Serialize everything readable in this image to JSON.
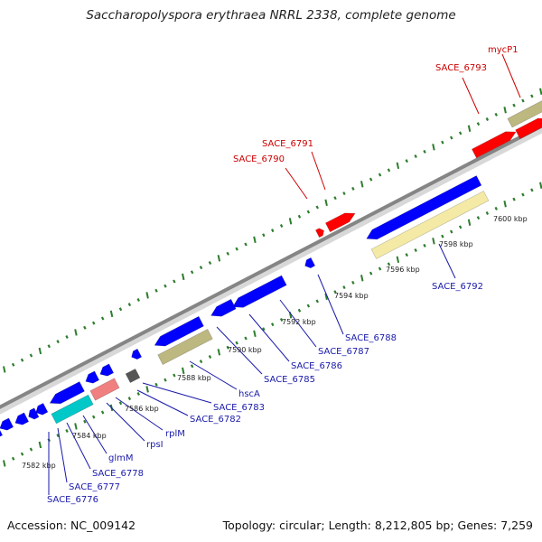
{
  "title": "Saccharopolyspora erythraea NRRL 2338, complete genome",
  "footer": {
    "accession": "Accession: NC_009142",
    "topology": "Topology: circular; Length: 8,212,805 bp; Genes: 7,259"
  },
  "colors": {
    "backbone": "#808080",
    "cds_forward": "#ff0000",
    "cds_reverse": "#0000ff",
    "rna": "#00c8c8",
    "other": "#bdb780",
    "tick": "#2e7d2e",
    "label_forward": "#cc0000",
    "label_reverse": "#1a1aaa"
  },
  "position_ticks": [
    {
      "label": "7582 kbp"
    },
    {
      "label": "7584 kbp"
    },
    {
      "label": "7586 kbp"
    },
    {
      "label": "7588 kbp"
    },
    {
      "label": "7590 kbp"
    },
    {
      "label": "7592 kbp"
    },
    {
      "label": "7594 kbp"
    },
    {
      "label": "7596 kbp"
    },
    {
      "label": "7598 kbp"
    },
    {
      "label": "7600 kbp"
    }
  ],
  "gene_labels": [
    {
      "text": "mycP1",
      "strand": "forward"
    },
    {
      "text": "SACE_6793",
      "strand": "forward"
    },
    {
      "text": "SACE_6791",
      "strand": "forward"
    },
    {
      "text": "SACE_6790",
      "strand": "forward"
    },
    {
      "text": "SACE_6792",
      "strand": "reverse"
    },
    {
      "text": "SACE_6788",
      "strand": "reverse"
    },
    {
      "text": "SACE_6787",
      "strand": "reverse"
    },
    {
      "text": "SACE_6786",
      "strand": "reverse"
    },
    {
      "text": "SACE_6785",
      "strand": "reverse"
    },
    {
      "text": "hscA",
      "strand": "reverse"
    },
    {
      "text": "SACE_6783",
      "strand": "reverse"
    },
    {
      "text": "SACE_6782",
      "strand": "reverse"
    },
    {
      "text": "rplM",
      "strand": "reverse"
    },
    {
      "text": "rpsI",
      "strand": "reverse"
    },
    {
      "text": "glmM",
      "strand": "reverse"
    },
    {
      "text": "SACE_6778",
      "strand": "reverse"
    },
    {
      "text": "SACE_6777",
      "strand": "reverse"
    },
    {
      "text": "SACE_6776",
      "strand": "reverse"
    }
  ]
}
